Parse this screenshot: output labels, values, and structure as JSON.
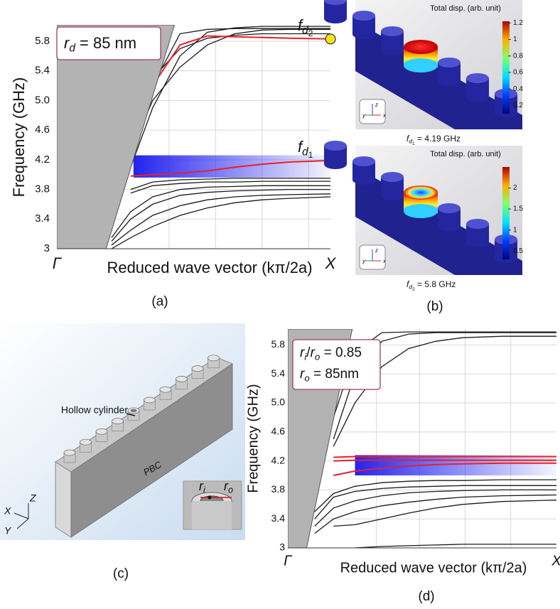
{
  "chart_data": [
    {
      "type": "line",
      "ylabel": "Frequency (GHz)",
      "xlabel": "Reduced  wave vector (kπ/2a)",
      "xlim": [
        0,
        1
      ],
      "ylim": [
        3,
        6.02
      ],
      "yticks": [
        3,
        3.4,
        3.8,
        4.2,
        4.6,
        {
          "value": 5,
          "label": "5.0"
        },
        5.4,
        5.8
      ],
      "xticks": [
        {
          "value": 0,
          "label": "Γ"
        },
        {
          "value": 1,
          "label": "X"
        }
      ],
      "xgrid": [
        0.41,
        0.58,
        0.75,
        0.92
      ],
      "grid": true,
      "light_cone": {
        "x_top": 0.43,
        "x_bottom": 0.18,
        "color": "#b3b3b3"
      },
      "band": {
        "ylim": [
          3.96,
          4.26
        ],
        "xlim": [
          0.28,
          1
        ],
        "color": "#2323f0"
      },
      "annotation_lines": [
        [
          {
            "t": "r",
            "sub": "d"
          },
          {
            "t": " = 85 nm"
          }
        ]
      ],
      "x": [
        0.2,
        0.27,
        0.35,
        0.45,
        0.55,
        0.65,
        0.75,
        0.85,
        1
      ],
      "series": [
        {
          "color": "#1a1a1a",
          "values": [
            3.1,
            3.4,
            3.6,
            3.72,
            3.76,
            3.78,
            3.79,
            3.8,
            3.8
          ]
        },
        {
          "color": "#1a1a1a",
          "values": [
            3.15,
            3.5,
            3.7,
            3.8,
            3.83,
            3.84,
            3.85,
            3.85,
            3.85
          ]
        },
        {
          "color": "#1a1a1a",
          "values": [
            null,
            3.75,
            3.85,
            3.88,
            3.9,
            3.9,
            3.91,
            3.91,
            3.91
          ]
        },
        {
          "color": "#1a1a1a",
          "values": [
            null,
            3.8,
            3.9,
            3.93,
            3.94,
            3.95,
            3.95,
            3.95,
            3.95
          ]
        },
        {
          "color": "#1a1a1a",
          "values": [
            3.05,
            3.25,
            3.45,
            3.58,
            3.66,
            3.7,
            3.72,
            3.73,
            3.74
          ]
        },
        {
          "color": "#1a1a1a",
          "values": [
            3.0,
            3.15,
            3.3,
            3.45,
            3.55,
            3.62,
            3.66,
            3.68,
            3.7
          ]
        },
        {
          "color": "#1a1a1a",
          "values": [
            null,
            4.1,
            4.9,
            5.6,
            5.92,
            5.98,
            6.0,
            6.0,
            6.0
          ]
        },
        {
          "color": "#1a1a1a",
          "values": [
            null,
            null,
            5.2,
            5.9,
            5.96,
            5.97,
            5.97,
            5.97,
            5.97
          ]
        },
        {
          "color": "#1a1a1a",
          "values": [
            null,
            4.3,
            5.0,
            5.45,
            5.75,
            5.9,
            5.95,
            5.96,
            5.96
          ]
        },
        {
          "color": "#1a1a1a",
          "values": [
            null,
            null,
            5.3,
            5.7,
            5.84,
            5.88,
            5.9,
            5.9,
            5.9
          ]
        },
        {
          "color": "#e8202a",
          "values": [
            null,
            3.98,
            4.0,
            4.02,
            4.05,
            4.1,
            4.14,
            4.17,
            4.19
          ],
          "marker_end": "#f5e11a",
          "marker_label": [
            {
              "t": "f",
              "sub": "d",
              "subsub": "1"
            }
          ]
        },
        {
          "color": "#e8202a",
          "values": [
            null,
            4.3,
            5.2,
            5.75,
            5.87,
            5.86,
            5.85,
            5.84,
            5.83
          ],
          "marker_end": "#f5e11a",
          "marker_label": [
            {
              "t": "f",
              "sub": "d",
              "subsub": "2"
            }
          ]
        }
      ]
    },
    {
      "type": "line",
      "ylabel": "Frequency (GHz)",
      "xlabel": "Reduced  wave vector (kπ/2a)",
      "xlim": [
        0,
        1
      ],
      "ylim": [
        3,
        6.02
      ],
      "yticks": [
        3,
        3.4,
        3.8,
        4.2,
        4.6,
        {
          "value": 5,
          "label": "5.0"
        },
        5.4,
        5.8
      ],
      "xticks": [
        {
          "value": 0,
          "label": "Γ"
        },
        {
          "value": 1,
          "label": "X"
        }
      ],
      "xgrid": [
        0.33,
        0.49,
        0.66,
        0.83
      ],
      "grid": true,
      "light_cone": {
        "x_top": 0.24,
        "x_bottom": 0.07,
        "color": "#b3b3b3"
      },
      "band": {
        "ylim": [
          4.0,
          4.28
        ],
        "xlim": [
          0.25,
          1
        ],
        "color": "#2323f0"
      },
      "annotation_lines": [
        [
          {
            "t": "r",
            "sub": "i"
          },
          {
            "t": "/"
          },
          {
            "t": "r",
            "sub": "o"
          },
          {
            "t": " = 0.85"
          }
        ],
        [
          {
            "t": "r",
            "sub": "o"
          },
          {
            "t": " = 85nm"
          }
        ]
      ],
      "x": [
        0.1,
        0.17,
        0.25,
        0.35,
        0.45,
        0.55,
        0.65,
        0.8,
        1
      ],
      "series": [
        {
          "color": "#1a1a1a",
          "values": [
            3.4,
            3.7,
            3.78,
            3.82,
            3.84,
            3.85,
            3.86,
            3.86,
            3.86
          ]
        },
        {
          "color": "#1a1a1a",
          "values": [
            3.5,
            3.75,
            3.85,
            3.9,
            3.92,
            3.93,
            3.93,
            3.94,
            3.94
          ]
        },
        {
          "color": "#1a1a1a",
          "values": [
            3.3,
            3.55,
            3.65,
            3.72,
            3.76,
            3.78,
            3.79,
            3.8,
            3.8
          ]
        },
        {
          "color": "#1a1a1a",
          "values": [
            3.2,
            3.4,
            3.5,
            3.58,
            3.63,
            3.67,
            3.7,
            3.72,
            3.73
          ]
        },
        {
          "color": "#1a1a1a",
          "values": [
            null,
            3.3,
            3.32,
            3.4,
            3.48,
            3.55,
            3.6,
            3.64,
            3.66
          ]
        },
        {
          "color": "#1a1a1a",
          "values": [
            null,
            null,
            3.0,
            3.02,
            3.03,
            3.04,
            3.05,
            3.05,
            3.05
          ]
        },
        {
          "color": "#1a1a1a",
          "values": [
            null,
            4.8,
            5.7,
            5.97,
            5.98,
            5.98,
            5.98,
            5.98,
            5.98
          ]
        },
        {
          "color": "#1a1a1a",
          "values": [
            null,
            4.5,
            5.4,
            5.85,
            5.95,
            5.97,
            5.97,
            5.97,
            5.97
          ]
        },
        {
          "color": "#1a1a1a",
          "values": [
            null,
            4.4,
            5.0,
            5.5,
            5.75,
            5.85,
            5.9,
            5.92,
            5.92
          ]
        },
        {
          "color": "#e8202a",
          "values": [
            null,
            4.25,
            4.26,
            4.26,
            4.26,
            4.26,
            4.26,
            4.26,
            4.26
          ]
        },
        {
          "color": "#e8202a",
          "values": [
            null,
            4.2,
            4.21,
            4.21,
            4.21,
            4.21,
            4.21,
            4.21,
            4.21
          ]
        },
        {
          "color": "#e8202a",
          "values": [
            null,
            4.0,
            4.06,
            4.1,
            4.13,
            4.15,
            4.16,
            4.17,
            4.17
          ]
        }
      ]
    }
  ],
  "panel_labels": [
    "(a)",
    "(b)",
    "(c)",
    "(d)"
  ],
  "panel_b": {
    "images": [
      {
        "title": "Total disp. (arb. unit)",
        "colorbar_ticks": [
          1.2,
          1,
          0.8,
          0.6,
          0.4,
          0.2
        ],
        "clim": [
          0.1,
          1.22
        ],
        "caption": [
          {
            "t": "f",
            "sub": "d",
            "subsub": "1"
          },
          {
            "t": " = 4.19 GHz"
          }
        ]
      },
      {
        "title": "Total disp. (arb. unit)",
        "colorbar_ticks": [
          2,
          1.5,
          1,
          0.5
        ],
        "clim": [
          0.3,
          2.5
        ],
        "caption": [
          {
            "t": "f",
            "sub": "d",
            "subsub": "2"
          },
          {
            "t": " = 5.8 GHz"
          }
        ]
      }
    ],
    "triad": [
      "z",
      "y",
      "x"
    ]
  },
  "panel_c": {
    "callout": "Hollow cylinder",
    "face_label": "PBC",
    "inset": [
      [
        {
          "t": "r",
          "sub": "i"
        }
      ],
      [
        {
          "t": "r",
          "sub": "o"
        }
      ]
    ],
    "axes": [
      "Z",
      "X",
      "Y"
    ]
  }
}
